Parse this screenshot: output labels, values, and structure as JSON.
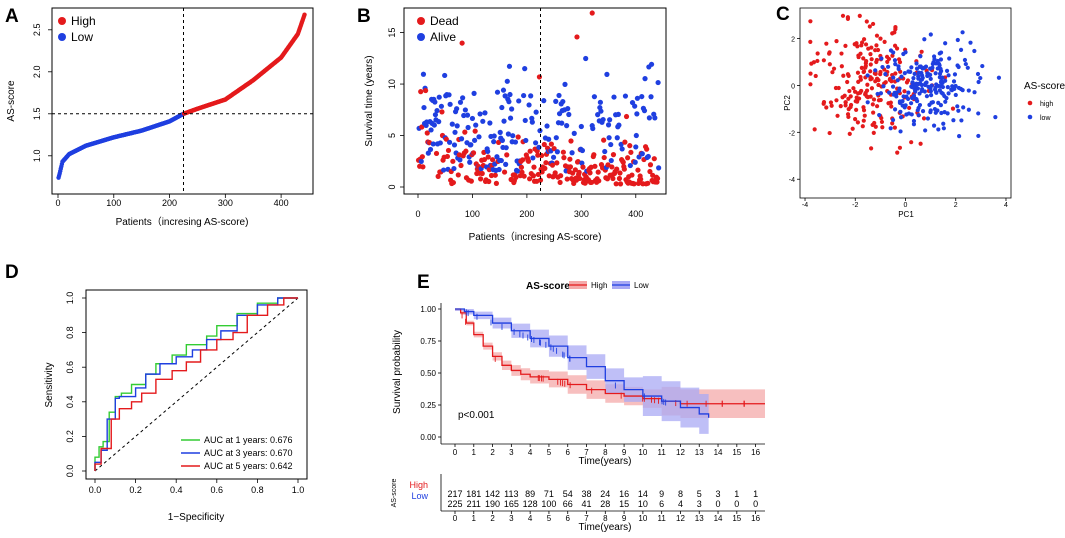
{
  "colors": {
    "high": "#e41a1c",
    "low": "#1f3fe0",
    "auc1": "#33cc33",
    "auc3": "#1f3fe0",
    "auc5": "#e41a1c",
    "highBand": "#f4a9a9",
    "lowBand": "#a9a9f4"
  },
  "chart_data": [
    {
      "panel": "A",
      "type": "scatter",
      "xlabel": "Patients（incresing AS-score)",
      "ylabel": "AS-score",
      "xlim": [
        0,
        450
      ],
      "ylim": [
        0.7,
        2.7
      ],
      "x_ticks": [
        "0",
        "100",
        "200",
        "300",
        "400"
      ],
      "y_ticks": [
        "1.0",
        "1.5",
        "2.0",
        "2.5"
      ],
      "legend": [
        "High",
        "Low"
      ],
      "cutoff_x": 225,
      "cutoff_y": 1.5,
      "n_total": 442,
      "curve_knots": [
        [
          1,
          0.74
        ],
        [
          3,
          0.79
        ],
        [
          8,
          0.93
        ],
        [
          20,
          1.02
        ],
        [
          50,
          1.12
        ],
        [
          100,
          1.22
        ],
        [
          150,
          1.3
        ],
        [
          200,
          1.41
        ],
        [
          225,
          1.5
        ],
        [
          250,
          1.56
        ],
        [
          300,
          1.67
        ],
        [
          350,
          1.9
        ],
        [
          400,
          2.17
        ],
        [
          430,
          2.45
        ],
        [
          442,
          2.68
        ]
      ]
    },
    {
      "panel": "B",
      "type": "scatter",
      "xlabel": "Patients（incresing AS-score)",
      "ylabel": "Survival time (years)",
      "xlim": [
        0,
        450
      ],
      "ylim": [
        0,
        17
      ],
      "x_ticks": [
        "0",
        "100",
        "200",
        "300",
        "400"
      ],
      "y_ticks": [
        "0",
        "5",
        "10",
        "15"
      ],
      "legend": [
        "Dead",
        "Alive"
      ],
      "cutoff_x": 225,
      "n_points": 442
    },
    {
      "panel": "C",
      "type": "scatter",
      "xlabel": "PC1",
      "ylabel": "PC2",
      "xlim": [
        -4.2,
        4.2
      ],
      "ylim": [
        -4.8,
        3.3
      ],
      "x_ticks": [
        "-4",
        "-2",
        "0",
        "2",
        "4"
      ],
      "y_ticks": [
        "-4",
        "-2",
        "0",
        "2"
      ],
      "legend_title": "AS-score",
      "legend": [
        "high",
        "low"
      ],
      "groups": [
        {
          "name": "high",
          "center": [
            -1.3,
            0.1
          ],
          "spread": [
            1.2,
            1.3
          ],
          "n": 217
        },
        {
          "name": "low",
          "center": [
            0.9,
            0.0
          ],
          "spread": [
            1.1,
            0.9
          ],
          "n": 225
        }
      ]
    },
    {
      "panel": "D",
      "type": "line",
      "xlabel": "1−Specificity",
      "ylabel": "Sensitivity",
      "xlim": [
        0,
        1
      ],
      "ylim": [
        0,
        1
      ],
      "x_ticks": [
        "0.0",
        "0.2",
        "0.4",
        "0.6",
        "0.8",
        "1.0"
      ],
      "y_ticks": [
        "0.0",
        "0.2",
        "0.4",
        "0.6",
        "0.8",
        "1.0"
      ],
      "series": [
        {
          "name": "AUC at 1 years: 0.676",
          "auc": 0.676,
          "points": [
            [
              0,
              0
            ],
            [
              0.02,
              0.08
            ],
            [
              0.04,
              0.14
            ],
            [
              0.07,
              0.17
            ],
            [
              0.1,
              0.34
            ],
            [
              0.13,
              0.43
            ],
            [
              0.18,
              0.45
            ],
            [
              0.25,
              0.5
            ],
            [
              0.3,
              0.56
            ],
            [
              0.38,
              0.62
            ],
            [
              0.45,
              0.67
            ],
            [
              0.55,
              0.73
            ],
            [
              0.6,
              0.78
            ],
            [
              0.7,
              0.84
            ],
            [
              0.8,
              0.91
            ],
            [
              0.9,
              0.97
            ],
            [
              1,
              1
            ]
          ]
        },
        {
          "name": "AUC at 3 years: 0.670",
          "auc": 0.67,
          "points": [
            [
              0,
              0
            ],
            [
              0.03,
              0.05
            ],
            [
              0.06,
              0.12
            ],
            [
              0.1,
              0.3
            ],
            [
              0.12,
              0.42
            ],
            [
              0.2,
              0.43
            ],
            [
              0.25,
              0.48
            ],
            [
              0.32,
              0.56
            ],
            [
              0.4,
              0.62
            ],
            [
              0.48,
              0.66
            ],
            [
              0.55,
              0.7
            ],
            [
              0.62,
              0.76
            ],
            [
              0.7,
              0.81
            ],
            [
              0.8,
              0.9
            ],
            [
              0.9,
              0.96
            ],
            [
              1,
              1
            ]
          ]
        },
        {
          "name": "AUC at 5 years: 0.642",
          "auc": 0.642,
          "points": [
            [
              0,
              0
            ],
            [
              0.03,
              0.04
            ],
            [
              0.08,
              0.13
            ],
            [
              0.12,
              0.3
            ],
            [
              0.18,
              0.36
            ],
            [
              0.23,
              0.4
            ],
            [
              0.3,
              0.45
            ],
            [
              0.38,
              0.53
            ],
            [
              0.45,
              0.58
            ],
            [
              0.52,
              0.63
            ],
            [
              0.6,
              0.7
            ],
            [
              0.68,
              0.76
            ],
            [
              0.75,
              0.8
            ],
            [
              0.85,
              0.9
            ],
            [
              0.93,
              0.96
            ],
            [
              1,
              1
            ]
          ]
        }
      ]
    },
    {
      "panel": "E",
      "type": "line",
      "title": "AS-score",
      "legend": [
        "High",
        "Low"
      ],
      "xlabel": "Time(years)",
      "ylabel": "Survival probability",
      "xlim": [
        0,
        16.5
      ],
      "ylim": [
        0,
        1
      ],
      "x_ticks": [
        "0",
        "1",
        "2",
        "3",
        "4",
        "5",
        "6",
        "7",
        "8",
        "9",
        "10",
        "11",
        "12",
        "13",
        "14",
        "15",
        "16"
      ],
      "y_ticks": [
        "0.00",
        "0.25",
        "0.50",
        "0.75",
        "1.00"
      ],
      "annotation": "p<0.001",
      "series": [
        {
          "name": "High",
          "points": [
            [
              0,
              1
            ],
            [
              0.3,
              0.97
            ],
            [
              0.6,
              0.89
            ],
            [
              1,
              0.8
            ],
            [
              1.5,
              0.71
            ],
            [
              2,
              0.63
            ],
            [
              2.5,
              0.56
            ],
            [
              3,
              0.52
            ],
            [
              3.5,
              0.49
            ],
            [
              4,
              0.47
            ],
            [
              5,
              0.45
            ],
            [
              6,
              0.41
            ],
            [
              7,
              0.37
            ],
            [
              8,
              0.34
            ],
            [
              9,
              0.32
            ],
            [
              10,
              0.3
            ],
            [
              11,
              0.28
            ],
            [
              12,
              0.26
            ],
            [
              16.5,
              0.26
            ]
          ],
          "band": 0.06
        },
        {
          "name": "Low",
          "points": [
            [
              0,
              1
            ],
            [
              0.5,
              0.98
            ],
            [
              1,
              0.95
            ],
            [
              2,
              0.89
            ],
            [
              3,
              0.83
            ],
            [
              4,
              0.77
            ],
            [
              5,
              0.71
            ],
            [
              6,
              0.62
            ],
            [
              7,
              0.55
            ],
            [
              8,
              0.44
            ],
            [
              9,
              0.37
            ],
            [
              10,
              0.32
            ],
            [
              11,
              0.28
            ],
            [
              12,
              0.23
            ],
            [
              13,
              0.18
            ],
            [
              13.5,
              0.15
            ]
          ],
          "band": 0.08
        }
      ],
      "risk_table": {
        "label": "AS-score",
        "xlabel": "Time(years)",
        "rows": [
          {
            "name": "High",
            "values": [
              "217",
              "181",
              "142",
              "113",
              "89",
              "71",
              "54",
              "38",
              "24",
              "16",
              "14",
              "9",
              "8",
              "5",
              "3",
              "1",
              "1"
            ]
          },
          {
            "name": "Low",
            "values": [
              "225",
              "211",
              "190",
              "165",
              "128",
              "100",
              "66",
              "41",
              "28",
              "15",
              "10",
              "6",
              "4",
              "3",
              "0",
              "0",
              "0"
            ]
          }
        ]
      }
    }
  ]
}
